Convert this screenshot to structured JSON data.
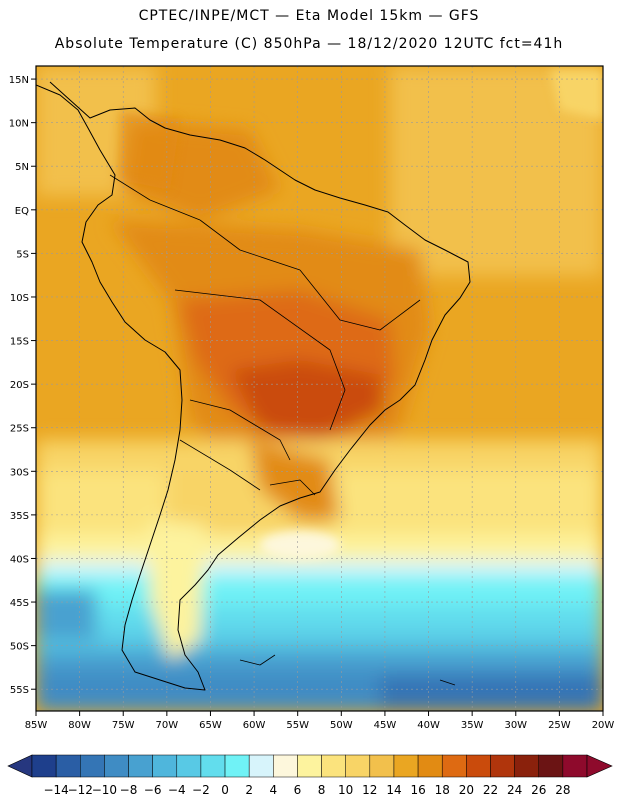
{
  "header": {
    "line1": "CPTEC/INPE/MCT —  Eta Model 15km — GFS",
    "line2": "Absolute Temperature (C) 850hPa — 18/12/2020 12UTC fct=41h"
  },
  "map": {
    "lon_labels": [
      "85W",
      "80W",
      "75W",
      "70W",
      "65W",
      "60W",
      "55W",
      "50W",
      "45W",
      "40W",
      "35W",
      "30W",
      "25W",
      "20W"
    ],
    "lat_labels": [
      "15N",
      "10N",
      "5N",
      "EQ",
      "5S",
      "10S",
      "15S",
      "20S",
      "25S",
      "30S",
      "35S",
      "40S",
      "45S",
      "50S",
      "55S"
    ],
    "lon_range": [
      -85,
      -20
    ],
    "lat_range": [
      -57.5,
      16.5
    ],
    "variable": "Absolute Temperature",
    "units": "C",
    "level": "850hPa"
  },
  "colorbar": {
    "labels": [
      "-14",
      "-12",
      "-10",
      "-8",
      "-6",
      "-4",
      "-2",
      "0",
      "2",
      "4",
      "6",
      "8",
      "10",
      "12",
      "14",
      "16",
      "18",
      "20",
      "22",
      "24",
      "26",
      "28"
    ],
    "colors": [
      "#1e3f8c",
      "#2a5ea5",
      "#3475b5",
      "#3f8cc4",
      "#48a1d0",
      "#4fb6dc",
      "#58c9e5",
      "#62dded",
      "#70f2f6",
      "#d7f4fb",
      "#fdf7dc",
      "#fdf39e",
      "#fbe37d",
      "#f8d466",
      "#f2c04c",
      "#eaa622",
      "#e28b13",
      "#de6a12",
      "#ca4b0c",
      "#b0350c",
      "#8a210c",
      "#6b1414",
      "#8e0a2c"
    ],
    "under_color": "#26377f",
    "over_color": "#8e0a2c"
  }
}
